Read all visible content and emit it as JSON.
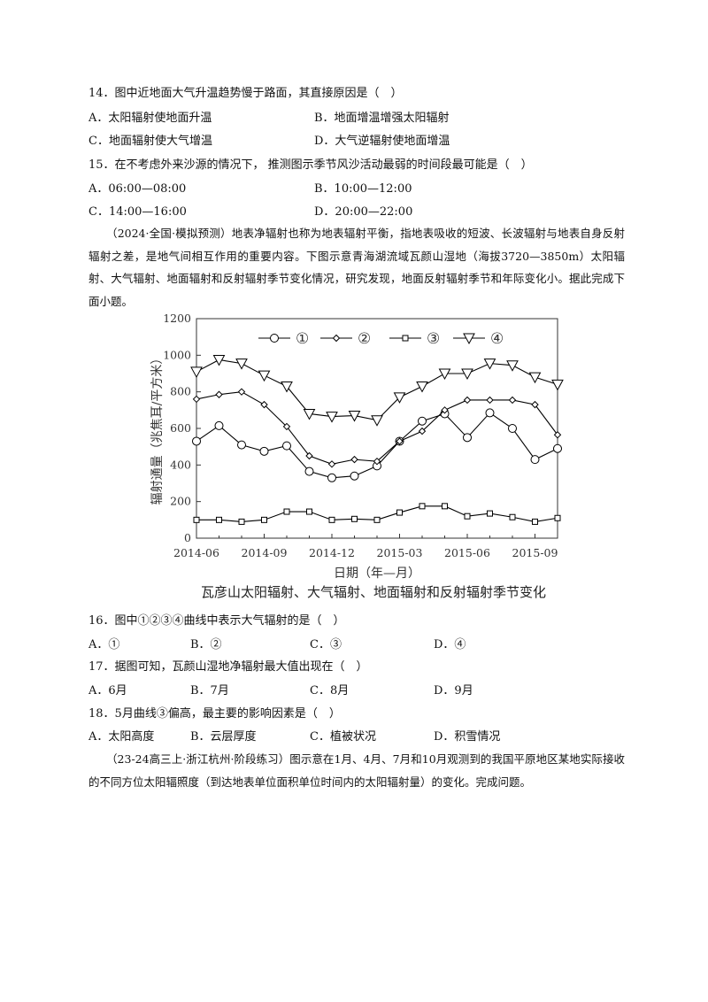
{
  "questions": [
    {
      "stem": "14．图中近地面大气升温趋势慢于路面，其直接原因是（　）",
      "options": [
        "A．太阳辐射使地面升温",
        "B．地面增温增强太阳辐射",
        "C．地面辐射使大气增温",
        "D．大气逆辐射使地面增温"
      ]
    },
    {
      "stem": "15．在不考虑外来沙源的情况下， 推测图示季节风沙活动最弱的时间段最可能是（　）",
      "options": [
        "A．06:00—08:00",
        "B．10:00—12:00",
        "C．14:00—16:00",
        "D．20:00—22:00"
      ]
    },
    {
      "stem": "16．图中①②③④曲线中表示大气辐射的是（　）",
      "options": [
        "A．①",
        "B．②",
        "C．③",
        "D．④"
      ]
    },
    {
      "stem": "17．据图可知，瓦颜山湿地净辐射最大值出现在（　）",
      "options": [
        "A．6月",
        "B．7月",
        "C．8月",
        "D．9月"
      ]
    },
    {
      "stem": "18．5月曲线③偏高，最主要的影响因素是（　）",
      "options": [
        "A．太阳高度",
        "B．云层厚度",
        "C．植被状况",
        "D．积雪情况"
      ]
    }
  ],
  "passages": [
    "（2024·全国·模拟预测）地表净辐射也称为地表辐射平衡，指地表吸收的短波、长波辐射与地表自身反射辐射之差，是地气间相互作用的重要内容。下图示意青海湖流域瓦颜山湿地（海拔3720—3850m）太阳辐射、大气辐射、地面辐射和反射辐射季节变化情况，研究发现，地面反射辐射季节和年际变化小。据此完成下面小题。",
    "（23-24高三上·浙江杭州·阶段练习）图示意在1月、4月、7月和10月观测到的我国平原地区某地实际接收的不同方位太阳辐照度（到达地表单位面积单位时间内的太阳辐射量）的变化。完成问题。"
  ],
  "chart_data": {
    "type": "line",
    "title": "瓦彦山太阳辐射、大气辐射、地面辐射和反射辐射季节变化",
    "x_label": "日期（年—月）",
    "y_label": "辐射通量（兆焦耳/平方米）",
    "categories": [
      "2014-06",
      null,
      null,
      "2014-09",
      null,
      null,
      "2014-12",
      null,
      null,
      "2015-03",
      null,
      null,
      "2015-06",
      null,
      null,
      "2015-09",
      null
    ],
    "ylim": [
      0,
      1200
    ],
    "yticks": [
      0,
      200,
      400,
      600,
      800,
      1000,
      1200
    ],
    "legend": "top",
    "series": [
      {
        "name": "①",
        "marker": "circle",
        "color": "#000000",
        "values": [
          530,
          615,
          510,
          475,
          505,
          365,
          330,
          340,
          395,
          530,
          640,
          680,
          550,
          685,
          600,
          430,
          490
        ]
      },
      {
        "name": "②",
        "marker": "diamond",
        "color": "#000000",
        "values": [
          760,
          785,
          800,
          730,
          610,
          450,
          405,
          430,
          420,
          530,
          585,
          700,
          755,
          755,
          755,
          730,
          565
        ]
      },
      {
        "name": "③",
        "marker": "square",
        "color": "#000000",
        "values": [
          100,
          100,
          90,
          100,
          145,
          145,
          100,
          105,
          100,
          140,
          175,
          175,
          120,
          135,
          115,
          90,
          110
        ]
      },
      {
        "name": "④",
        "marker": "triangle",
        "color": "#000000",
        "values": [
          910,
          975,
          955,
          890,
          830,
          680,
          665,
          670,
          645,
          770,
          830,
          900,
          900,
          955,
          945,
          880,
          840
        ]
      }
    ]
  }
}
